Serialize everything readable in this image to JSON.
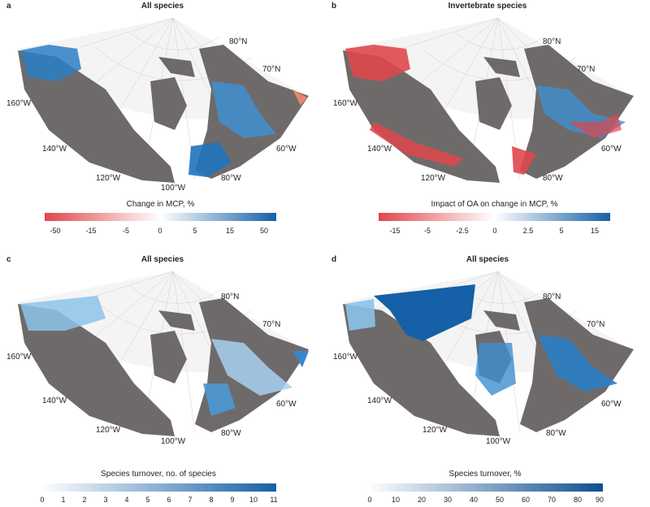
{
  "panels": {
    "a": {
      "letter": "a",
      "title": "All species",
      "colorbar_title": "Change in MCP, %",
      "ticks": [
        "-50",
        "-15",
        "-5",
        "0",
        "5",
        "15",
        "50"
      ]
    },
    "b": {
      "letter": "b",
      "title": "Invertebrate species",
      "colorbar_title": "Impact of OA on change in MCP, %",
      "ticks": [
        "-15",
        "-5",
        "-2.5",
        "0",
        "2.5",
        "5",
        "15"
      ]
    },
    "c": {
      "letter": "c",
      "title": "All species",
      "colorbar_title": "Species turnover, no. of species",
      "ticks": [
        "0",
        "1",
        "2",
        "3",
        "4",
        "5",
        "6",
        "7",
        "8",
        "9",
        "10",
        "11"
      ]
    },
    "d": {
      "letter": "d",
      "title": "All species",
      "colorbar_title": "Species turnover, %",
      "ticks": [
        "0",
        "10",
        "20",
        "30",
        "40",
        "50",
        "60",
        "70",
        "80",
        "90"
      ]
    }
  },
  "graticule_labels": {
    "lat80": "80°N",
    "lat70": "70°N",
    "lon160": "160°W",
    "lon140": "140°W",
    "lon120": "120°W",
    "lon100": "100°W",
    "lon80": "80°W",
    "lon60": "60°W"
  },
  "colors": {
    "land": "#6f6a6a",
    "ocean": "#f4f4f4",
    "red": "#e0474c",
    "blue": "#1560a6",
    "light_blue": "#6fb1df"
  }
}
